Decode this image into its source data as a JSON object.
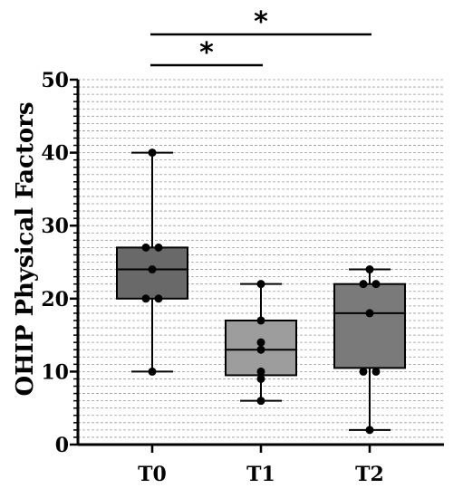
{
  "chart_data": {
    "type": "box",
    "ylabel": "OHIP Physical Factors",
    "ylim": [
      0,
      50
    ],
    "yticks": [
      0,
      10,
      20,
      30,
      40,
      50
    ],
    "grid": "dashed horizontal lines",
    "categories": [
      "T0",
      "T1",
      "T2"
    ],
    "series": [
      {
        "category": "T0",
        "min": 10,
        "q1": 20,
        "median": 24,
        "q3": 27,
        "max": 40,
        "fill": "#696969",
        "points": [
          10,
          20,
          20,
          24,
          27,
          27,
          40
        ]
      },
      {
        "category": "T1",
        "min": 6,
        "q1": 9.5,
        "median": 13,
        "q3": 17,
        "max": 22,
        "fill": "#9d9d9d",
        "points": [
          6,
          9,
          10,
          13,
          14,
          17,
          22
        ]
      },
      {
        "category": "T2",
        "min": 2,
        "q1": 10.5,
        "median": 18,
        "q3": 22,
        "max": 24,
        "fill": "#7a7a7a",
        "points": [
          2,
          10,
          10,
          18,
          22,
          22,
          24
        ]
      }
    ],
    "annotations": [
      {
        "from": "T0",
        "to": "T1",
        "label": "*"
      },
      {
        "from": "T0",
        "to": "T2",
        "label": "*"
      }
    ]
  }
}
